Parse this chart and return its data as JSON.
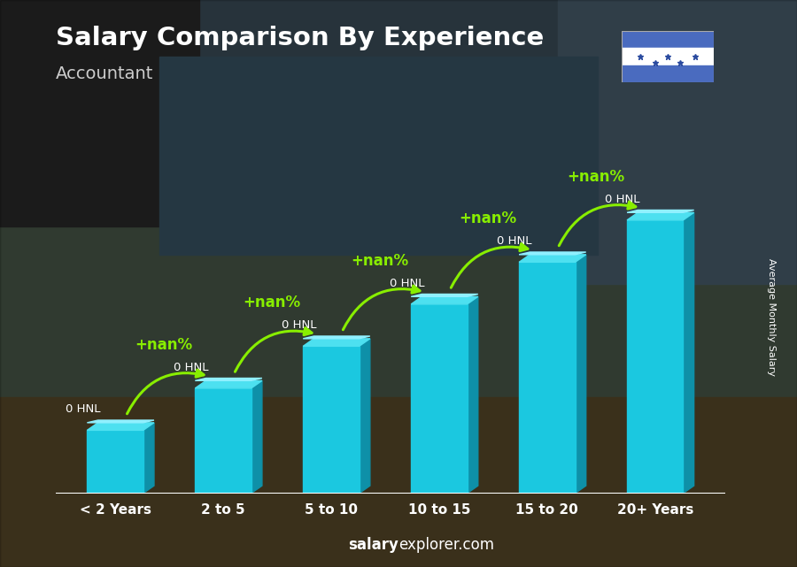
{
  "title": "Salary Comparison By Experience",
  "subtitle": "Accountant",
  "categories": [
    "< 2 Years",
    "2 to 5",
    "5 to 10",
    "10 to 15",
    "15 to 20",
    "20+ Years"
  ],
  "bar_labels": [
    "0 HNL",
    "0 HNL",
    "0 HNL",
    "0 HNL",
    "0 HNL",
    "0 HNL"
  ],
  "pct_labels": [
    "+nan%",
    "+nan%",
    "+nan%",
    "+nan%",
    "+nan%"
  ],
  "ylabel_text": "Average Monthly Salary",
  "footer_bold": "salary",
  "footer_rest": "explorer.com",
  "bar_color_front": "#1bc8e0",
  "bar_color_side": "#0e90a8",
  "bar_color_top": "#4de0f0",
  "bar_color_cap": "#7aeeff",
  "arrow_color": "#88ee00",
  "label_color": "#ffffff",
  "title_color": "#ffffff",
  "subtitle_color": "#cccccc",
  "bg_colors": [
    "#3a3020",
    "#2a3545",
    "#1a2535",
    "#2a3040",
    "#3a3525"
  ],
  "bar_heights": [
    1.5,
    2.5,
    3.5,
    4.5,
    5.5,
    6.5
  ],
  "ylim_max": 8.5,
  "flag_blue": "#4a6bbf",
  "flag_white": "#ffffff",
  "flag_star_color": "#2a4a9f"
}
